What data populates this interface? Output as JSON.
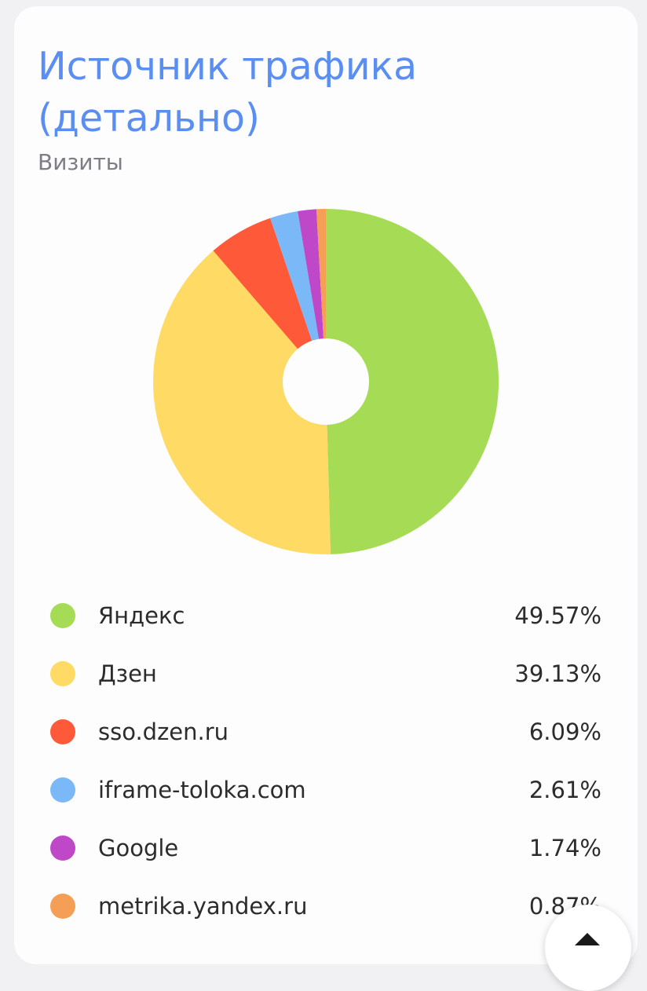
{
  "chart_data": {
    "type": "pie",
    "title": "Источник трафика (детально)",
    "subtitle": "Визиты",
    "start_angle_deg": 0,
    "donut_hole": true,
    "series": [
      {
        "name": "Яндекс",
        "value": 49.57,
        "value_label": "49.57%",
        "color": "#a6dc55"
      },
      {
        "name": "Дзен",
        "value": 39.13,
        "value_label": "39.13%",
        "color": "#ffdb66"
      },
      {
        "name": "sso.dzen.ru",
        "value": 6.09,
        "value_label": "6.09%",
        "color": "#fe5a3a"
      },
      {
        "name": "iframe-toloka.com",
        "value": 2.61,
        "value_label": "2.61%",
        "color": "#7ab8f8"
      },
      {
        "name": "Google",
        "value": 1.74,
        "value_label": "1.74%",
        "color": "#be48c8"
      },
      {
        "name": "metrika.yandex.ru",
        "value": 0.87,
        "value_label": "0.87%",
        "color": "#f59e56"
      }
    ]
  }
}
